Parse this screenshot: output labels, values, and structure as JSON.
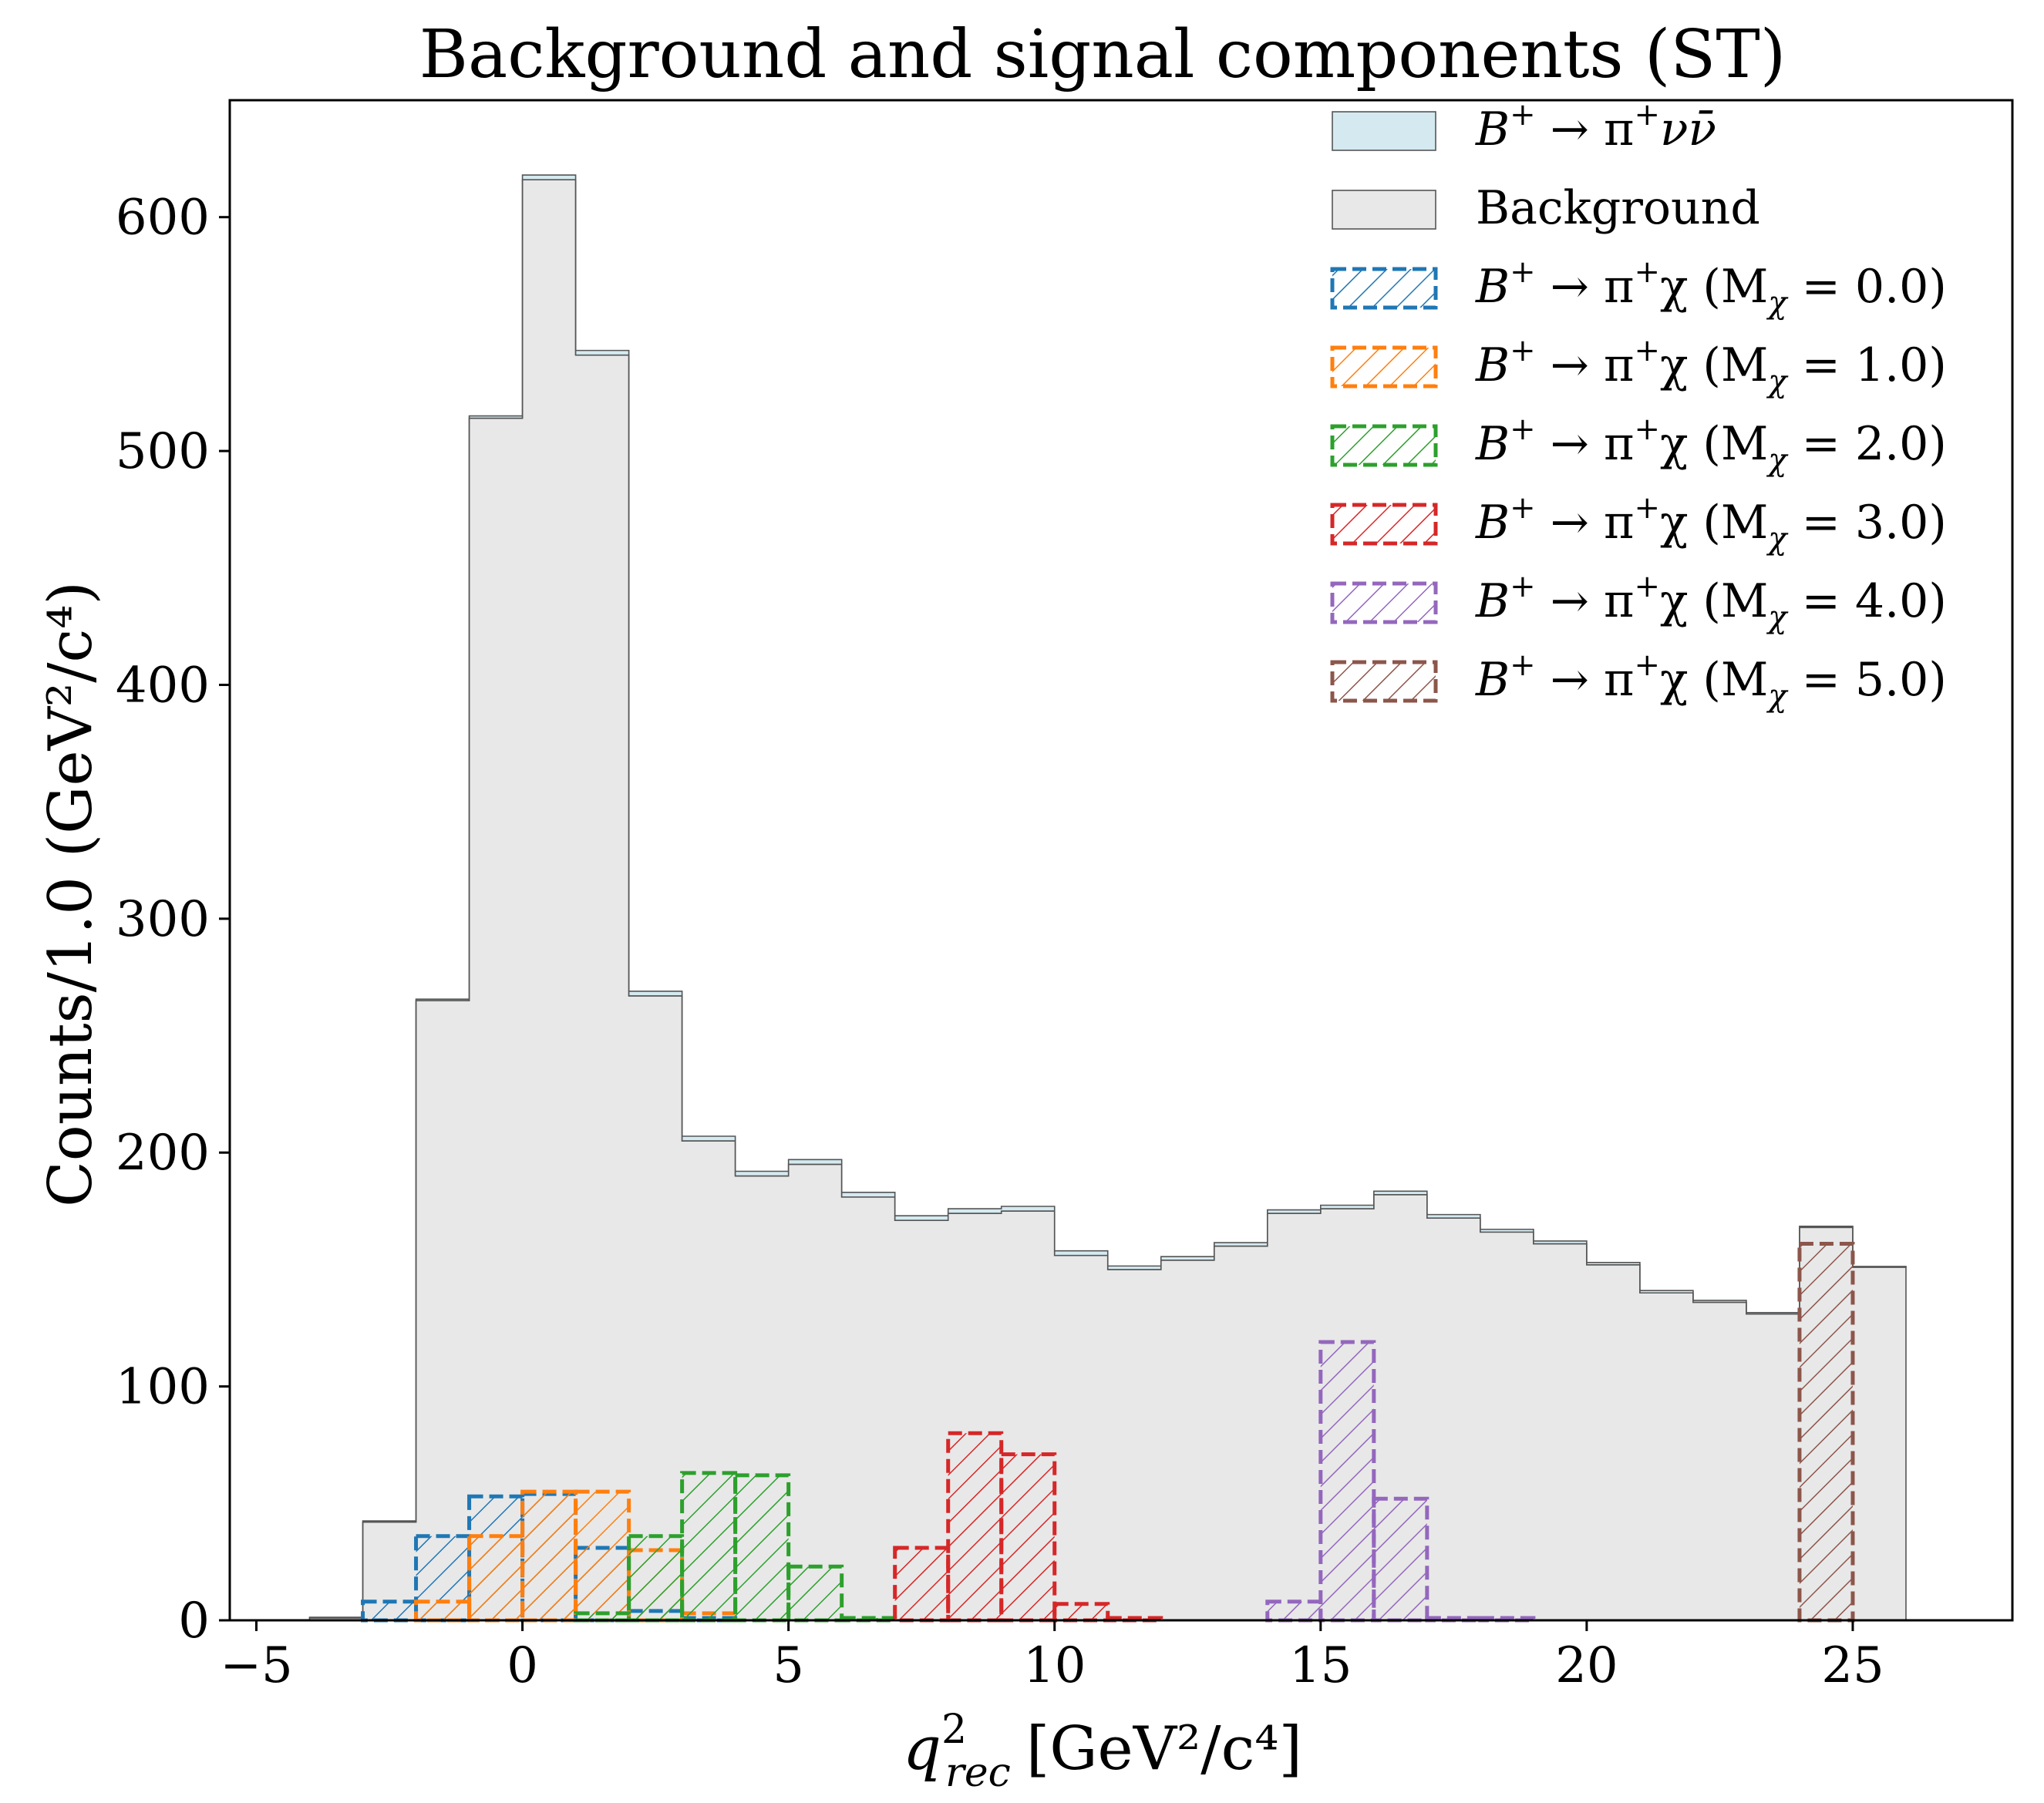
{
  "chart_data": {
    "type": "bar",
    "title": "Background and signal components (ST)",
    "xlabel": "q",
    "xlabel_sup": "2",
    "xlabel_sub": "rec",
    "xlabel_units": "[GeV²/c⁴]",
    "ylabel": "Counts/1.0 (GeV²/c⁴)",
    "xlim": [
      -5.5,
      28
    ],
    "ylim": [
      0,
      650
    ],
    "xticks": [
      -5,
      0,
      5,
      10,
      15,
      20,
      25
    ],
    "xtick_labels": [
      "−5",
      "0",
      "5",
      "10",
      "15",
      "20",
      "25"
    ],
    "yticks": [
      0,
      100,
      200,
      300,
      400,
      500,
      600
    ],
    "ytick_labels": [
      "0",
      "100",
      "200",
      "300",
      "400",
      "500",
      "600"
    ],
    "grid": false,
    "legend_position": "top-right",
    "bin_width": 1.0,
    "bin_edges_start": -4,
    "stack": [
      {
        "name": "Background",
        "legend_label": "Background",
        "color": "#e8e8e8",
        "edge": "#555555",
        "values": [
          1,
          42,
          265,
          514,
          616,
          541,
          267,
          205,
          190,
          195,
          181,
          171,
          174,
          175,
          156,
          150,
          154,
          160,
          174,
          176,
          182,
          172,
          166,
          161,
          152,
          140,
          136,
          131,
          168,
          151
        ]
      },
      {
        "name": "B+ -> pi+ nu nubar",
        "legend_base": "B",
        "legend_sup": "+",
        "legend_arrow": " → π",
        "legend_sup2": "+",
        "legend_tail": "νν̄",
        "color": "#d4eaf0",
        "edge": "#555555",
        "values": [
          0.3,
          0.5,
          0.6,
          1,
          2,
          2,
          2,
          2,
          2,
          2,
          2,
          2,
          2,
          2,
          2,
          1.5,
          1.5,
          1.5,
          1.5,
          1.5,
          1.5,
          1.5,
          1.2,
          1.2,
          1,
          1,
          0.8,
          0.6,
          0.5,
          0.3
        ]
      }
    ],
    "signals": [
      {
        "mass": "0.0",
        "legend_head": "B",
        "legend_sup": "+",
        "legend_arrow": " → π",
        "legend_sup2": "+",
        "legend_chi": "χ (M",
        "legend_sub": "χ",
        "legend_eq": " = 0.0)",
        "color": "#1f77b4",
        "start": -3,
        "values": [
          8,
          36,
          53,
          54,
          31,
          4,
          1
        ]
      },
      {
        "mass": "1.0",
        "legend_head": "B",
        "legend_sup": "+",
        "legend_arrow": " → π",
        "legend_sup2": "+",
        "legend_chi": "χ (M",
        "legend_sub": "χ",
        "legend_eq": " = 1.0)",
        "color": "#ff7f0e",
        "start": -2,
        "values": [
          8,
          36,
          55,
          55,
          30,
          3
        ]
      },
      {
        "mass": "2.0",
        "legend_head": "B",
        "legend_sup": "+",
        "legend_arrow": " → π",
        "legend_sup2": "+",
        "legend_chi": "χ (M",
        "legend_sub": "χ",
        "legend_eq": " = 2.0)",
        "color": "#2ca02c",
        "start": 1,
        "values": [
          3,
          36,
          63,
          62,
          23,
          1
        ]
      },
      {
        "mass": "3.0",
        "legend_head": "B",
        "legend_sup": "+",
        "legend_arrow": " → π",
        "legend_sup2": "+",
        "legend_chi": "χ (M",
        "legend_sub": "χ",
        "legend_eq": " = 3.0)",
        "color": "#d62728",
        "start": 7,
        "values": [
          31,
          80,
          71,
          7,
          1
        ]
      },
      {
        "mass": "4.0",
        "legend_head": "B",
        "legend_sup": "+",
        "legend_arrow": " → π",
        "legend_sup2": "+",
        "legend_chi": "χ (M",
        "legend_sub": "χ",
        "legend_eq": " = 4.0)",
        "color": "#9467bd",
        "start": 14,
        "values": [
          8,
          119,
          52,
          1,
          1
        ]
      },
      {
        "mass": "5.0",
        "legend_head": "B",
        "legend_sup": "+",
        "legend_arrow": " → π",
        "legend_sup2": "+",
        "legend_chi": "χ (M",
        "legend_sub": "χ",
        "legend_eq": " = 5.0)",
        "color": "#8c564b",
        "start": 24,
        "values": [
          161
        ]
      }
    ]
  }
}
